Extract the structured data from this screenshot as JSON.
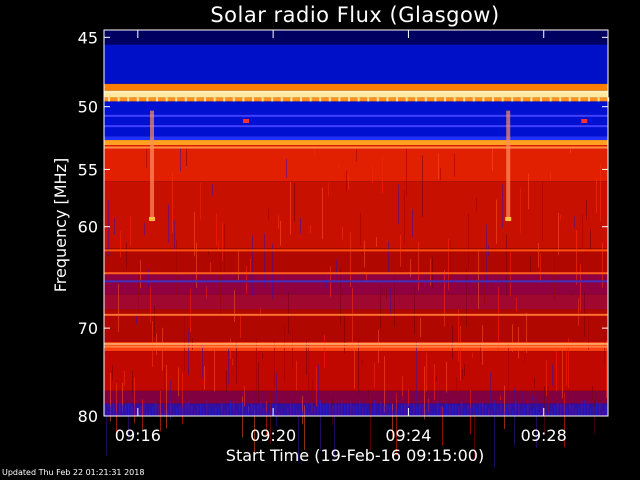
{
  "chart_data": {
    "type": "heatmap",
    "title": "Solar radio Flux (Glasgow)",
    "xlabel": "Start Time (19-Feb-16 09:15:00)",
    "ylabel": "Frequency [MHz]",
    "x_tick_labels": [
      "09:16",
      "09:20",
      "09:24",
      "09:28"
    ],
    "x_tick_minutes": [
      1,
      5,
      9,
      13
    ],
    "xlim_minutes": [
      0,
      14.9
    ],
    "y_tick_values": [
      45,
      50,
      55,
      60,
      70,
      80
    ],
    "ylim": [
      44.5,
      80
    ],
    "y_scale": "log",
    "colormap": [
      "#000080",
      "#0000ff",
      "#800000",
      "#c00000",
      "#ff2000",
      "#ff6000",
      "#ffa000",
      "#ffe080"
    ],
    "bands": [
      {
        "from": 44.5,
        "to": 45.5,
        "color": "#000060"
      },
      {
        "from": 45.5,
        "to": 48.3,
        "color": "#0010c8"
      },
      {
        "from": 48.3,
        "to": 48.8,
        "color": "#ff8000"
      },
      {
        "from": 48.8,
        "to": 49.3,
        "color": "#ffe8a0"
      },
      {
        "from": 49.3,
        "to": 49.6,
        "color": "#ff9020"
      },
      {
        "from": 49.6,
        "to": 52.3,
        "color": "#0010d0"
      },
      {
        "from": 52.3,
        "to": 52.6,
        "color": "#2030ff"
      },
      {
        "from": 52.6,
        "to": 53.0,
        "color": "#ffa020"
      },
      {
        "from": 53.0,
        "to": 56.0,
        "color": "#e02000"
      },
      {
        "from": 56.0,
        "to": 62.0,
        "color": "#c81000"
      },
      {
        "from": 62.0,
        "to": 64.5,
        "color": "#b00800"
      },
      {
        "from": 64.5,
        "to": 66.5,
        "color": "#900040"
      },
      {
        "from": 66.5,
        "to": 68.0,
        "color": "#a00830"
      },
      {
        "from": 68.0,
        "to": 71.5,
        "color": "#b00800"
      },
      {
        "from": 71.5,
        "to": 72.5,
        "color": "#ff4010"
      },
      {
        "from": 72.5,
        "to": 77.0,
        "color": "#c00800"
      },
      {
        "from": 77.0,
        "to": 78.5,
        "color": "#800040"
      },
      {
        "from": 78.5,
        "to": 80.0,
        "color": "#3010a0"
      }
    ],
    "bright_lines": [
      {
        "freq": 48.9,
        "color": "#fff0c0"
      },
      {
        "freq": 50.7,
        "color": "#4040ff"
      },
      {
        "freq": 51.5,
        "color": "#4040ff"
      },
      {
        "freq": 53.2,
        "color": "#ff9040"
      },
      {
        "freq": 62.2,
        "color": "#ff5010"
      },
      {
        "freq": 64.4,
        "color": "#ff6020"
      },
      {
        "freq": 65.2,
        "color": "#4030c0"
      },
      {
        "freq": 68.6,
        "color": "#ff7030"
      },
      {
        "freq": 71.7,
        "color": "#ffa060"
      },
      {
        "freq": 72.0,
        "color": "#ff8040"
      }
    ],
    "spikes": [
      {
        "minute": 1.42,
        "color": "#ff9060"
      },
      {
        "minute": 11.95,
        "color": "#ff9060"
      }
    ],
    "spike_dots": [
      {
        "minute": 1.42,
        "freq": 59.3,
        "color": "#ffc040"
      },
      {
        "minute": 11.95,
        "freq": 59.3,
        "color": "#ffc040"
      },
      {
        "minute": 4.2,
        "freq": 51.1,
        "color": "#ff3030"
      },
      {
        "minute": 14.2,
        "freq": 51.1,
        "color": "#ff3030"
      }
    ]
  },
  "footer": {
    "updated": "Updated Thu Feb 22 01:21:31 2018"
  }
}
